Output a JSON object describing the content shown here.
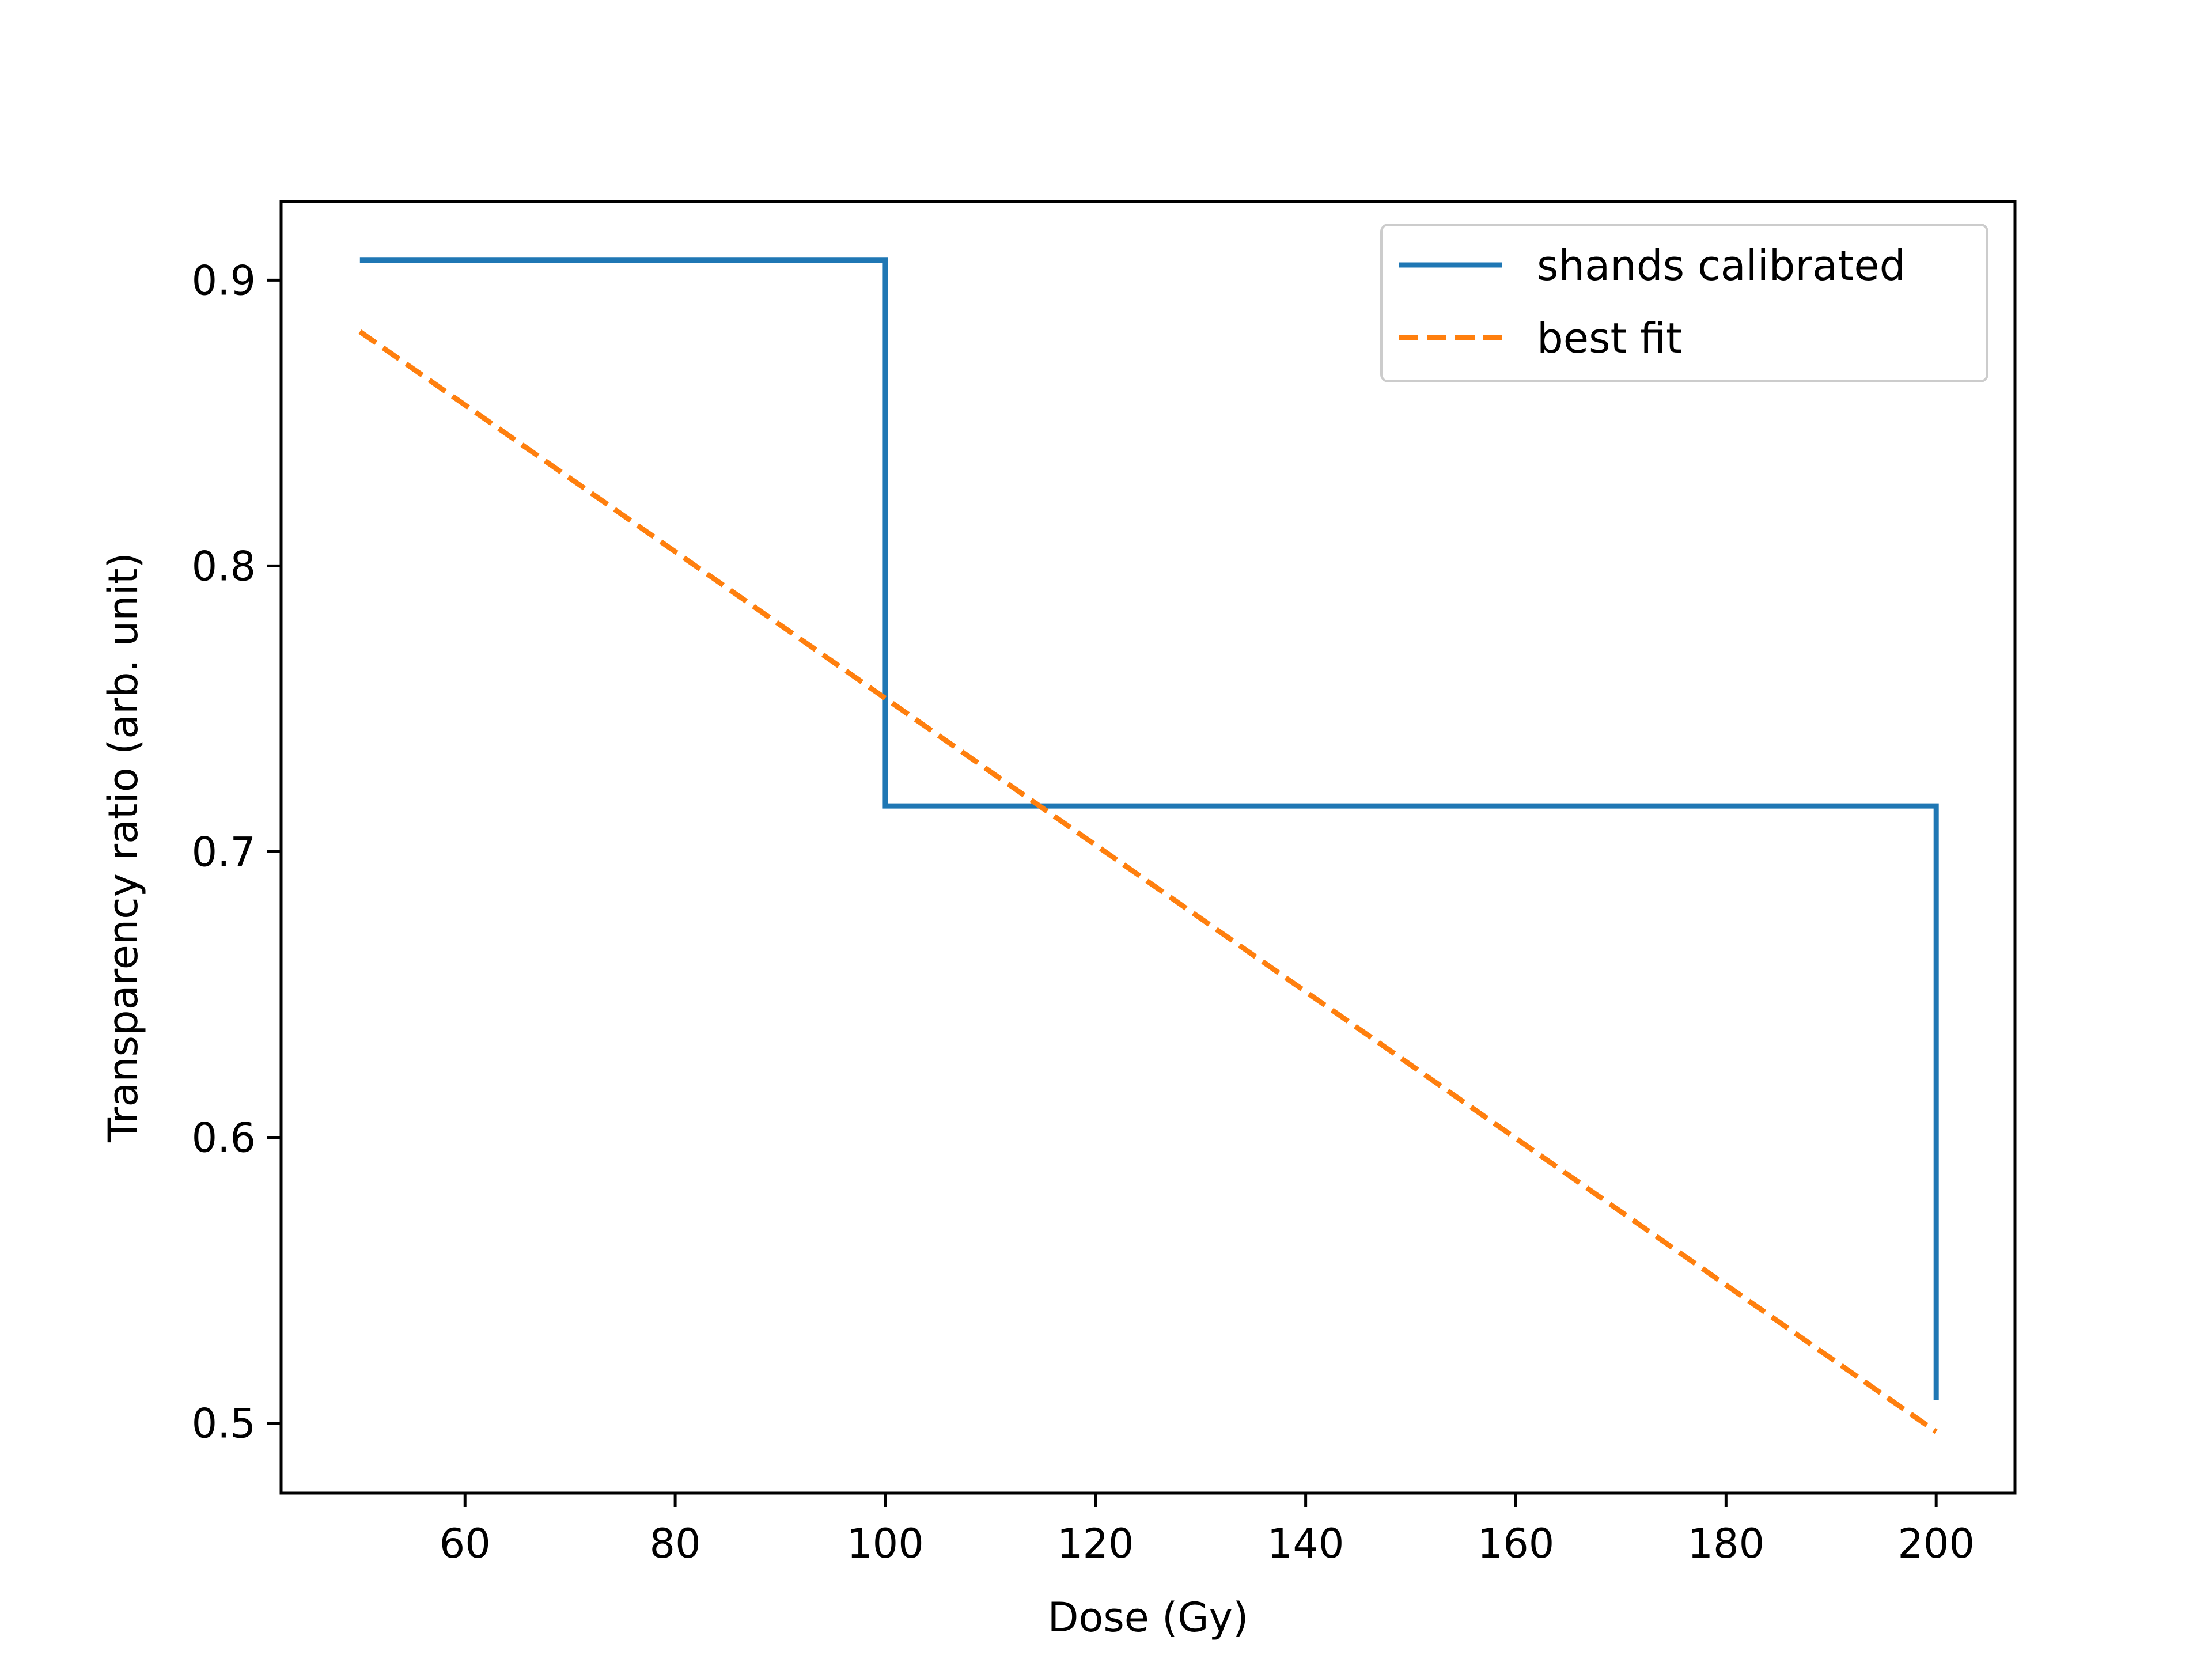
{
  "chart_data": {
    "type": "line",
    "title": "",
    "xlabel": "Dose (Gy)",
    "ylabel": "Transparency ratio (arb. unit)",
    "xlim": [
      42.5,
      207.5
    ],
    "ylim": [
      0.4755,
      0.9275
    ],
    "xticks": [
      60,
      80,
      100,
      120,
      140,
      160,
      180,
      200
    ],
    "yticks": [
      0.5,
      0.6,
      0.7,
      0.8,
      0.9
    ],
    "xtick_labels": [
      "60",
      "80",
      "100",
      "120",
      "140",
      "160",
      "180",
      "200"
    ],
    "ytick_labels": [
      "0.5",
      "0.6",
      "0.7",
      "0.8",
      "0.9"
    ],
    "grid": false,
    "legend_position": "top-right",
    "series": [
      {
        "name": "shands calibrated",
        "style": "step",
        "color": "#1f77b4",
        "dash": "solid",
        "x": [
          50,
          100,
          100,
          200,
          200
        ],
        "y": [
          0.907,
          0.907,
          0.716,
          0.716,
          0.508
        ]
      },
      {
        "name": "best fit",
        "style": "line",
        "color": "#ff7f0e",
        "dash": "dashed",
        "x": [
          50,
          200
        ],
        "y": [
          0.882,
          0.497
        ]
      }
    ]
  }
}
